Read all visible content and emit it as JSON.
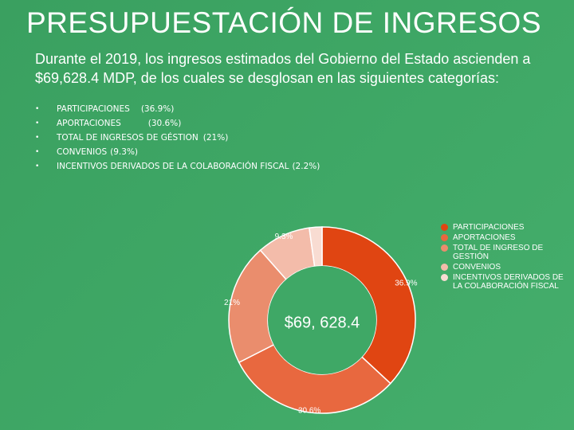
{
  "page": {
    "title": "PRESUPUESTACIÓN DE INGRESOS",
    "intro": "Durante el 2019, los ingresos estimados del Gobierno del Estado ascienden a $69,628.4 MDP, de los cuales se desglosan en las siguientes categorías:",
    "bullets": [
      {
        "label": "PARTICIPACIONES",
        "pct": "(36.9%)"
      },
      {
        "label": "APORTACIONES",
        "pct": "(30.6%)"
      },
      {
        "label": "TOTAL DE INGRESOS DE GÉSTION",
        "pct": "(21%)"
      },
      {
        "label": "CONVENIOS",
        "pct": "(9.3%)"
      },
      {
        "label": "INCENTIVOS DERIVADOS DE LA COLABORACIÓN FISCAL",
        "pct": "(2.2%)"
      }
    ]
  },
  "chart_data": {
    "type": "pie",
    "donut": true,
    "center_label": "$69, 628.4",
    "categories": [
      "PARTICIPACIONES",
      "APORTACIONES",
      "TOTAL DE INGRESO DE GESTIÓN",
      "CONVENIOS",
      "INCENTIVOS DERIVADOS DE LA COLABORACIÓN FISCAL"
    ],
    "values": [
      36.9,
      30.6,
      21,
      9.3,
      2.2
    ],
    "data_labels": [
      "36.9%",
      "30.6%",
      "21%",
      "9.3%",
      ""
    ],
    "colors": [
      "#e04512",
      "#e8683f",
      "#ea8d6d",
      "#f3bcaa",
      "#f8dcd2"
    ],
    "legend_position": "right"
  }
}
